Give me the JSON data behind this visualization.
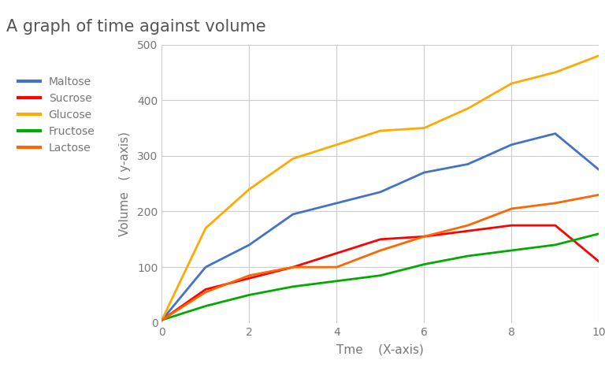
{
  "title": "A graph of time against volume",
  "xlabel": "Tme    (X-axis)",
  "ylabel": "Volume   ( y-axis)",
  "xlim": [
    0,
    10
  ],
  "ylim": [
    0,
    500
  ],
  "xticks": [
    0,
    2,
    4,
    6,
    8,
    10
  ],
  "yticks": [
    0,
    100,
    200,
    300,
    400,
    500
  ],
  "series": [
    {
      "label": "Maltose",
      "color": "#4472C4",
      "x": [
        0,
        1,
        2,
        3,
        4,
        5,
        6,
        7,
        8,
        9,
        10
      ],
      "y": [
        5,
        100,
        140,
        195,
        215,
        235,
        270,
        285,
        320,
        340,
        275
      ]
    },
    {
      "label": "Sucrose",
      "color": "#FF0000",
      "x": [
        0,
        1,
        2,
        3,
        4,
        5,
        6,
        7,
        8,
        9,
        10
      ],
      "y": [
        5,
        60,
        80,
        100,
        125,
        150,
        155,
        165,
        175,
        175,
        110
      ]
    },
    {
      "label": "Glucose",
      "color": "#FFAA00",
      "x": [
        0,
        1,
        2,
        3,
        4,
        5,
        6,
        7,
        8,
        9,
        10
      ],
      "y": [
        5,
        170,
        240,
        295,
        320,
        345,
        350,
        385,
        430,
        450,
        480
      ]
    },
    {
      "label": "Fructose",
      "color": "#00AA00",
      "x": [
        0,
        1,
        2,
        3,
        4,
        5,
        6,
        7,
        8,
        9,
        10
      ],
      "y": [
        5,
        30,
        50,
        65,
        75,
        85,
        105,
        120,
        130,
        140,
        160
      ]
    },
    {
      "label": "Lactose",
      "color": "#FF6600",
      "x": [
        0,
        1,
        2,
        3,
        4,
        5,
        6,
        7,
        8,
        9,
        10
      ],
      "y": [
        5,
        55,
        85,
        100,
        100,
        130,
        155,
        175,
        205,
        215,
        230
      ]
    }
  ],
  "background_color": "#ffffff",
  "title_color": "#555555",
  "title_fontsize": 15,
  "axis_label_color": "#777777",
  "tick_color": "#777777",
  "line_width": 2.0,
  "legend_fontsize": 10,
  "tick_fontsize": 10,
  "xlabel_fontsize": 11,
  "ylabel_fontsize": 11
}
